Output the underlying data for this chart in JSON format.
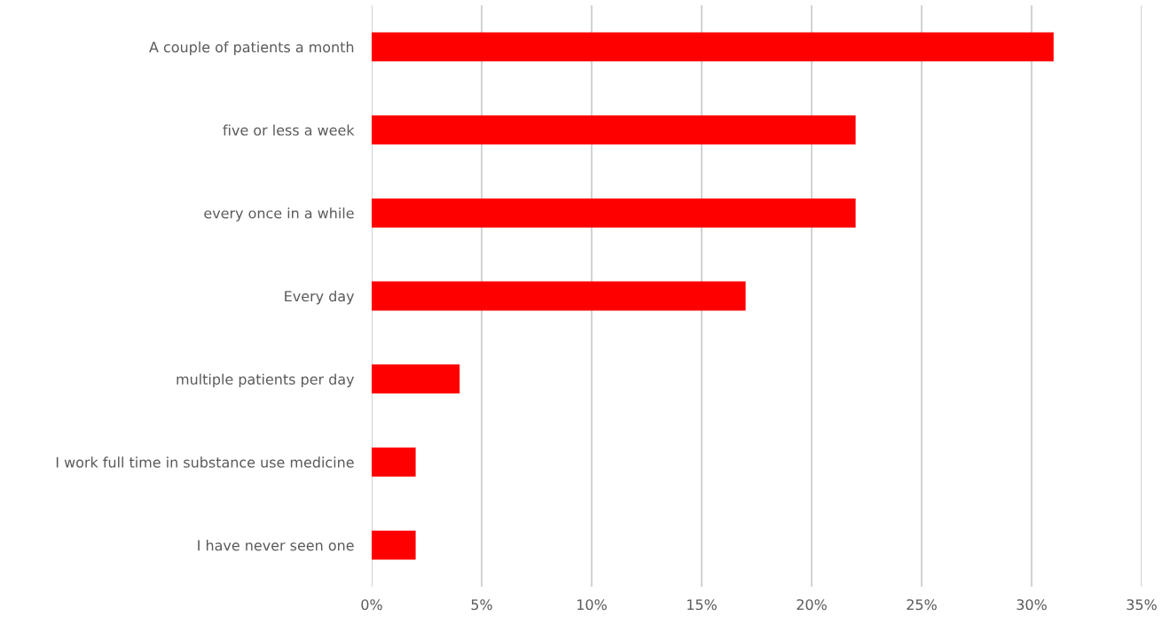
{
  "chart_data": {
    "type": "bar",
    "orientation": "horizontal",
    "categories": [
      "A couple of patients a month",
      "five or less a week",
      "every once in a while",
      "Every day",
      "multiple patients per day",
      "I work full time in substance use medicine",
      "I have never seen one"
    ],
    "values": [
      31,
      22,
      22,
      17,
      4,
      2,
      2
    ],
    "color": "#ff0000",
    "xlim": [
      0,
      35
    ],
    "xticks": [
      {
        "value": 0,
        "label": "0%"
      },
      {
        "value": 5,
        "label": "5%"
      },
      {
        "value": 10,
        "label": "10%"
      },
      {
        "value": 15,
        "label": "15%"
      },
      {
        "value": 20,
        "label": "20%"
      },
      {
        "value": 25,
        "label": "25%"
      },
      {
        "value": 30,
        "label": "30%"
      },
      {
        "value": 35,
        "label": "35%"
      }
    ],
    "grid": "x",
    "legend": false
  }
}
